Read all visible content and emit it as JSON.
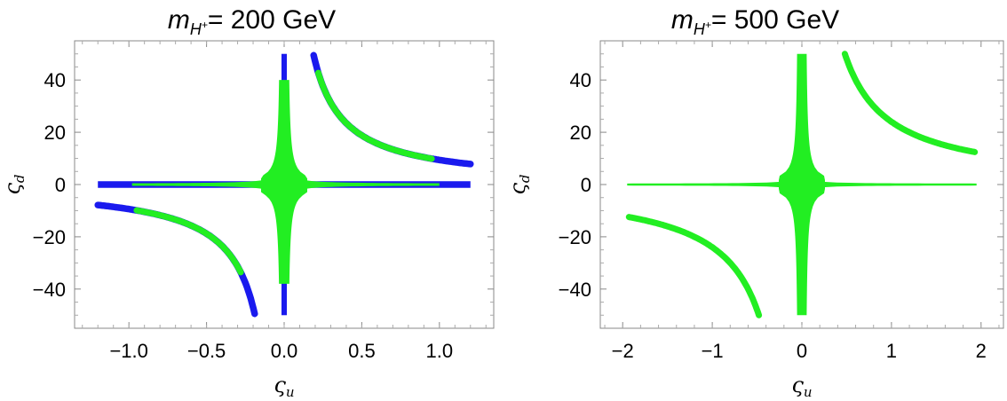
{
  "chart_data": [
    {
      "type": "scatter",
      "title": {
        "symbol": "m",
        "subscript": "H",
        "superscript": "+",
        "text": "= 200 GeV"
      },
      "xlabel": {
        "symbol": "ς",
        "subscript": "u"
      },
      "ylabel": {
        "symbol": "ς",
        "subscript": "d"
      },
      "xlim": [
        -1.35,
        1.35
      ],
      "ylim": [
        -55,
        55
      ],
      "xticks": [
        -1.0,
        -0.5,
        0.0,
        0.5,
        1.0
      ],
      "xtick_labels": [
        "−1.0",
        "−0.5",
        "0.0",
        "0.5",
        "1.0"
      ],
      "yticks": [
        -40,
        -20,
        0,
        20,
        40
      ],
      "ytick_labels": [
        "−40",
        "−20",
        "0",
        "20",
        "40"
      ],
      "grid": false,
      "colors": {
        "background_region": "#1a1aee",
        "allowed_region": "#22ee22"
      },
      "series": [
        {
          "color": "#1a1aee",
          "regions": [
            {
              "shape": "horizontal-band",
              "x_range": [
                -1.2,
                1.2
              ],
              "y": 0
            },
            {
              "shape": "vertical-band",
              "x": 0,
              "y_range": [
                -50,
                50
              ]
            },
            {
              "shape": "hyperbola",
              "k": 9.4,
              "x_range": [
                0.19,
                1.2
              ]
            },
            {
              "shape": "hyperbola",
              "k": 9.4,
              "x_range": [
                -1.2,
                -0.19
              ]
            }
          ]
        },
        {
          "color": "#22ee22",
          "regions": [
            {
              "shape": "horizontal-band",
              "x_range": [
                -0.98,
                1.0
              ],
              "y": 0
            },
            {
              "shape": "vertical-spike",
              "x": 0,
              "y_range": [
                -38,
                40
              ]
            },
            {
              "shape": "hyperbola",
              "k": 9.4,
              "x_range": [
                0.22,
                0.95
              ]
            },
            {
              "shape": "hyperbola",
              "k": 9.4,
              "x_range": [
                -0.95,
                -0.28
              ]
            }
          ]
        }
      ]
    },
    {
      "type": "scatter",
      "title": {
        "symbol": "m",
        "subscript": "H",
        "superscript": "+",
        "text": "= 500 GeV"
      },
      "xlabel": {
        "symbol": "ς",
        "subscript": "u"
      },
      "ylabel": {
        "symbol": "ς",
        "subscript": "d"
      },
      "xlim": [
        -2.25,
        2.25
      ],
      "ylim": [
        -55,
        55
      ],
      "xticks": [
        -2,
        -1,
        0,
        1,
        2
      ],
      "xtick_labels": [
        "−2",
        "−1",
        "0",
        "1",
        "2"
      ],
      "yticks": [
        -40,
        -20,
        0,
        20,
        40
      ],
      "ytick_labels": [
        "−40",
        "−20",
        "0",
        "20",
        "40"
      ],
      "grid": false,
      "colors": {
        "background_region": "#1a1aee",
        "allowed_region": "#22ee22"
      },
      "series": [
        {
          "color": "#22ee22",
          "regions": [
            {
              "shape": "horizontal-band",
              "x_range": [
                -1.95,
                1.95
              ],
              "y": 0
            },
            {
              "shape": "vertical-spike",
              "x": 0,
              "y_range": [
                -50,
                50
              ]
            },
            {
              "shape": "hyperbola",
              "k": 24,
              "x_range": [
                0.48,
                1.93
              ]
            },
            {
              "shape": "hyperbola",
              "k": 24,
              "x_range": [
                -1.93,
                -0.48
              ]
            }
          ]
        }
      ]
    }
  ]
}
